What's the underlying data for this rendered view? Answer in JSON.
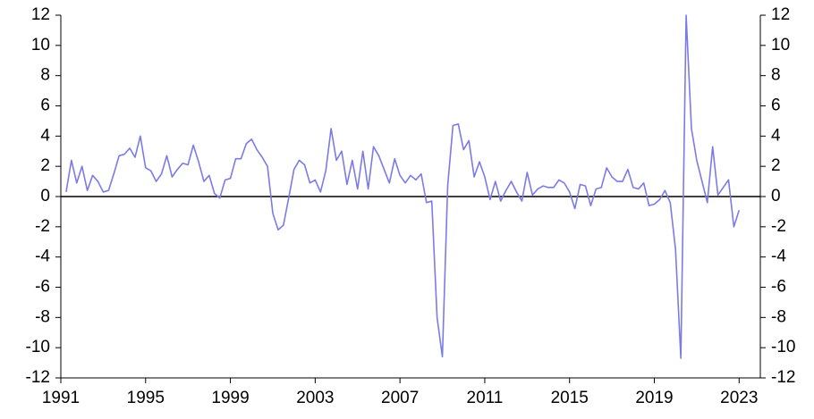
{
  "chart_data": {
    "type": "line",
    "x": [
      1991.25,
      1991.5,
      1991.75,
      1992,
      1992.25,
      1992.5,
      1992.75,
      1993,
      1993.25,
      1993.5,
      1993.75,
      1994,
      1994.25,
      1994.5,
      1994.75,
      1995,
      1995.25,
      1995.5,
      1995.75,
      1996,
      1996.25,
      1996.5,
      1996.75,
      1997,
      1997.25,
      1997.5,
      1997.75,
      1998,
      1998.25,
      1998.5,
      1998.75,
      1999,
      1999.25,
      1999.5,
      1999.75,
      2000,
      2000.25,
      2000.5,
      2000.75,
      2001,
      2001.25,
      2001.5,
      2001.75,
      2002,
      2002.25,
      2002.5,
      2002.75,
      2003,
      2003.25,
      2003.5,
      2003.75,
      2004,
      2004.25,
      2004.5,
      2004.75,
      2005,
      2005.25,
      2005.5,
      2005.75,
      2006,
      2006.25,
      2006.5,
      2006.75,
      2007,
      2007.25,
      2007.5,
      2007.75,
      2008,
      2008.25,
      2008.5,
      2008.75,
      2009,
      2009.25,
      2009.5,
      2009.75,
      2010,
      2010.25,
      2010.5,
      2010.75,
      2011,
      2011.25,
      2011.5,
      2011.75,
      2012,
      2012.25,
      2012.5,
      2012.75,
      2013,
      2013.25,
      2013.5,
      2013.75,
      2014,
      2014.25,
      2014.5,
      2014.75,
      2015,
      2015.25,
      2015.5,
      2015.75,
      2016,
      2016.25,
      2016.5,
      2016.75,
      2017,
      2017.25,
      2017.5,
      2017.75,
      2018,
      2018.25,
      2018.5,
      2018.75,
      2019,
      2019.25,
      2019.5,
      2019.75,
      2020,
      2020.25,
      2020.5,
      2020.75,
      2021,
      2021.25,
      2021.5,
      2021.75,
      2022,
      2022.25,
      2022.5,
      2022.75,
      2023
    ],
    "series": [
      {
        "color": "#7b7be8",
        "values": [
          0.3,
          2.4,
          0.9,
          2.0,
          0.4,
          1.4,
          1.0,
          0.3,
          0.4,
          1.5,
          2.7,
          2.8,
          3.2,
          2.6,
          4.0,
          1.9,
          1.7,
          1.0,
          1.5,
          2.7,
          1.3,
          1.8,
          2.2,
          2.1,
          3.4,
          2.3,
          1.0,
          1.4,
          0.2,
          -0.1,
          1.1,
          1.2,
          2.5,
          2.5,
          3.5,
          3.8,
          3.1,
          2.6,
          2.0,
          -1.1,
          -2.2,
          -1.9,
          -0.1,
          1.8,
          2.4,
          2.1,
          0.9,
          1.1,
          0.3,
          1.7,
          4.5,
          2.4,
          3.0,
          0.8,
          2.4,
          0.5,
          3.0,
          0.5,
          3.3,
          2.7,
          1.8,
          0.9,
          2.5,
          1.4,
          0.9,
          1.4,
          1.1,
          1.5,
          -0.4,
          -0.3,
          -8.0,
          -10.6,
          0.7,
          4.7,
          4.8,
          3.1,
          3.7,
          1.3,
          2.3,
          1.3,
          -0.2,
          1.0,
          -0.3,
          0.4,
          1.0,
          0.3,
          -0.3,
          1.6,
          0.1,
          0.5,
          0.7,
          0.6,
          0.6,
          1.1,
          0.9,
          0.3,
          -0.8,
          0.8,
          0.7,
          -0.6,
          0.5,
          0.6,
          1.9,
          1.3,
          1.0,
          1.0,
          1.8,
          0.6,
          0.5,
          0.9,
          -0.6,
          -0.5,
          -0.2,
          0.4,
          -0.4,
          -3.5,
          -10.7,
          12.0,
          4.5,
          2.4,
          1.0,
          -0.4,
          3.3,
          0.1,
          0.6,
          1.1,
          -2.0,
          -0.9
        ]
      }
    ],
    "xlim": [
      1991,
      2024
    ],
    "xticks": [
      1991,
      1995,
      1999,
      2003,
      2007,
      2011,
      2015,
      2019,
      2023
    ],
    "ylim": [
      -12,
      12
    ],
    "yticks": [
      -12,
      -10,
      -8,
      -6,
      -4,
      -2,
      0,
      2,
      4,
      6,
      8,
      10,
      12
    ],
    "y2lim": [
      -12,
      12
    ],
    "y2ticks": [
      -12,
      -10,
      -8,
      -6,
      -4,
      -2,
      0,
      2,
      4,
      6,
      8,
      10,
      12
    ]
  }
}
